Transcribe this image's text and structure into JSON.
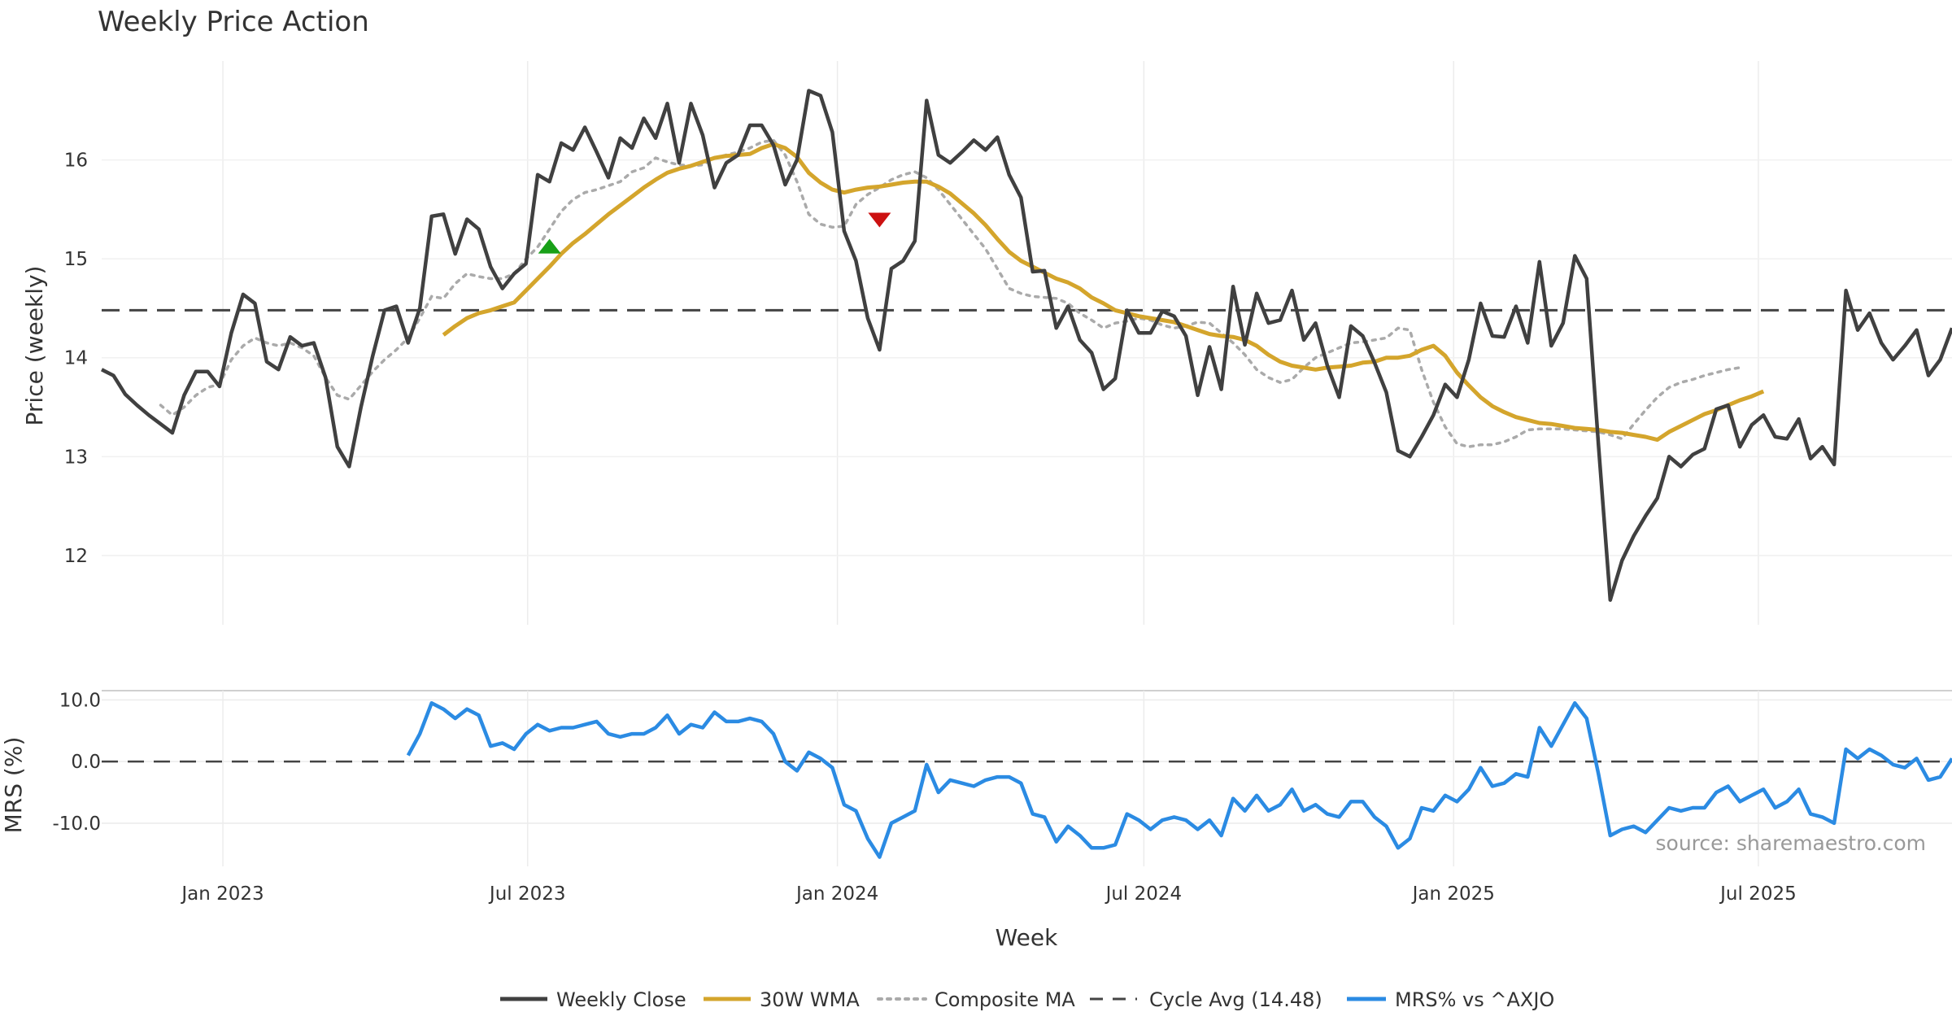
{
  "chart_data": {
    "type": "line",
    "title": "Weekly Price Action",
    "xlabel": "Week",
    "x_ticks": [
      "Jan 2023",
      "Jul 2023",
      "Jan 2024",
      "Jul 2024",
      "Jan 2025",
      "Jul 2025"
    ],
    "x_range": [
      "2022-10-21",
      "2025-10-24"
    ],
    "x_tick_dates": [
      "2023-01-01",
      "2023-07-01",
      "2024-01-01",
      "2024-07-01",
      "2025-01-01",
      "2025-07-01"
    ],
    "grid": true,
    "legend_position": "bottom",
    "source": "source: sharemaestro.com",
    "colors": {
      "close": "#404040",
      "wma": "#d4a52c",
      "composite": "#aaaaaa",
      "avg": "#444444",
      "mrs": "#2b8be3",
      "buy": "#18a018",
      "sell": "#cc1111"
    },
    "price_panel": {
      "ylabel": "Price (weekly)",
      "ylim": [
        11.3,
        17.0
      ],
      "yticks": [
        12,
        13,
        14,
        15,
        16
      ],
      "cycle_avg": 14.48,
      "series": [
        {
          "name": "Weekly Close",
          "start_week": 0,
          "values": [
            13.88,
            13.82,
            13.63,
            13.52,
            13.42,
            13.33,
            13.24,
            13.62,
            13.86,
            13.86,
            13.71,
            14.25,
            14.64,
            14.55,
            13.96,
            13.88,
            14.21,
            14.12,
            14.15,
            13.8,
            13.1,
            12.9,
            13.5,
            14.02,
            14.48,
            14.52,
            14.15,
            14.5,
            15.43,
            15.45,
            15.05,
            15.4,
            15.3,
            14.92,
            14.7,
            14.85,
            14.95,
            15.85,
            15.78,
            16.17,
            16.1,
            16.33,
            16.08,
            15.82,
            16.22,
            16.12,
            16.42,
            16.22,
            16.57,
            15.97,
            16.57,
            16.25,
            15.72,
            15.97,
            16.05,
            16.35,
            16.35,
            16.15,
            15.75,
            16.0,
            16.7,
            16.65,
            16.28,
            15.28,
            14.98,
            14.4,
            14.08,
            14.9,
            14.98,
            15.18,
            16.6,
            16.05,
            15.97,
            16.08,
            16.2,
            16.1,
            16.23,
            15.85,
            15.62,
            14.87,
            14.88,
            14.3,
            14.52,
            14.18,
            14.05,
            13.68,
            13.79,
            14.48,
            14.25,
            14.25,
            14.47,
            14.42,
            14.22,
            13.62,
            14.11,
            13.68,
            14.72,
            14.13,
            14.65,
            14.35,
            14.38,
            14.68,
            14.18,
            14.35,
            13.92,
            13.6,
            14.32,
            14.22,
            13.95,
            13.65,
            13.06,
            13.0,
            13.2,
            13.42,
            13.73,
            13.6,
            13.98,
            14.55,
            14.22,
            14.21,
            14.52,
            14.15,
            14.97,
            14.12,
            14.35,
            15.03,
            14.8,
            13.12,
            11.55,
            11.95,
            12.2,
            12.4,
            12.58,
            13.0,
            12.9,
            13.02,
            13.08,
            13.48,
            13.52,
            13.1,
            13.32,
            13.42,
            13.2,
            13.18,
            13.38,
            12.98,
            13.1,
            12.92,
            14.68,
            14.28,
            14.45,
            14.15,
            13.98,
            14.12,
            14.28,
            13.82,
            13.98,
            14.3
          ]
        },
        {
          "name": "30W WMA",
          "start_week": 29,
          "values": [
            14.23,
            14.32,
            14.4,
            14.45,
            14.48,
            14.52,
            14.56,
            14.68,
            14.8,
            14.92,
            15.05,
            15.16,
            15.25,
            15.35,
            15.45,
            15.54,
            15.63,
            15.72,
            15.8,
            15.87,
            15.91,
            15.94,
            15.98,
            16.02,
            16.04,
            16.05,
            16.06,
            16.12,
            16.16,
            16.12,
            16.03,
            15.87,
            15.77,
            15.7,
            15.67,
            15.7,
            15.72,
            15.73,
            15.75,
            15.77,
            15.78,
            15.78,
            15.73,
            15.66,
            15.56,
            15.46,
            15.34,
            15.2,
            15.07,
            14.98,
            14.92,
            14.86,
            14.8,
            14.76,
            14.7,
            14.61,
            14.55,
            14.48,
            14.45,
            14.42,
            14.4,
            14.38,
            14.36,
            14.32,
            14.28,
            14.24,
            14.22,
            14.21,
            14.18,
            14.12,
            14.03,
            13.96,
            13.92,
            13.9,
            13.88,
            13.9,
            13.91,
            13.92,
            13.95,
            13.96,
            14.0,
            14.0,
            14.02,
            14.08,
            14.12,
            14.02,
            13.85,
            13.72,
            13.6,
            13.51,
            13.45,
            13.4,
            13.37,
            13.34,
            13.33,
            13.31,
            13.29,
            13.28,
            13.27,
            13.25,
            13.24,
            13.22,
            13.2,
            13.17,
            13.25,
            13.31,
            13.37,
            13.43,
            13.47,
            13.52,
            13.57,
            13.61,
            13.66
          ]
        },
        {
          "name": "Composite MA",
          "start_week": 5,
          "values": [
            13.52,
            13.42,
            13.5,
            13.62,
            13.7,
            13.73,
            13.98,
            14.12,
            14.2,
            14.15,
            14.12,
            14.15,
            14.1,
            14.02,
            13.8,
            13.62,
            13.58,
            13.72,
            13.86,
            13.98,
            14.08,
            14.2,
            14.4,
            14.62,
            14.6,
            14.75,
            14.85,
            14.82,
            14.8,
            14.8,
            14.85,
            15.0,
            15.12,
            15.3,
            15.48,
            15.6,
            15.67,
            15.7,
            15.74,
            15.78,
            15.88,
            15.92,
            16.02,
            15.98,
            15.95,
            15.94,
            15.95,
            16.02,
            16.05,
            16.08,
            16.12,
            16.18,
            16.2,
            16.05,
            15.78,
            15.45,
            15.35,
            15.32,
            15.33,
            15.55,
            15.65,
            15.72,
            15.8,
            15.85,
            15.88,
            15.82,
            15.7,
            15.55,
            15.4,
            15.25,
            15.1,
            14.9,
            14.7,
            14.65,
            14.62,
            14.61,
            14.6,
            14.55,
            14.45,
            14.38,
            14.3,
            14.35,
            14.37,
            14.4,
            14.38,
            14.33,
            14.3,
            14.32,
            14.36,
            14.35,
            14.25,
            14.15,
            14.03,
            13.88,
            13.8,
            13.75,
            13.78,
            13.9,
            14.0,
            14.05,
            14.1,
            14.15,
            14.16,
            14.18,
            14.2,
            14.3,
            14.28,
            13.88,
            13.55,
            13.3,
            13.13,
            13.1,
            13.12,
            13.12,
            13.15,
            13.2,
            13.27,
            13.28,
            13.28,
            13.28,
            13.27,
            13.26,
            13.25,
            13.22,
            13.18,
            13.33,
            13.47,
            13.6,
            13.7,
            13.75,
            13.78,
            13.82,
            13.85,
            13.88,
            13.9
          ]
        }
      ],
      "signals": [
        {
          "type": "buy",
          "week": 38,
          "value": 15.12
        },
        {
          "type": "sell",
          "week": 66,
          "value": 15.4
        }
      ]
    },
    "mrs_panel": {
      "ylabel": "MRS (%)",
      "ylim": [
        -17,
        11.5
      ],
      "yticks": [
        "10.0",
        "0.0",
        "-10.0"
      ],
      "ytick_values": [
        10,
        0,
        -10
      ],
      "zero_line": 0,
      "series": [
        {
          "name": "MRS% vs ^AXJO",
          "start_week": 26,
          "values": [
            1.0,
            4.5,
            9.5,
            8.5,
            7.0,
            8.5,
            7.5,
            2.5,
            3.0,
            2.0,
            4.5,
            6.0,
            5.0,
            5.5,
            5.5,
            6.0,
            6.5,
            4.5,
            4.0,
            4.5,
            4.5,
            5.5,
            7.5,
            4.5,
            6.0,
            5.5,
            8.0,
            6.5,
            6.5,
            7.0,
            6.5,
            4.5,
            0.0,
            -1.5,
            1.5,
            0.5,
            -1.0,
            -7.0,
            -8.0,
            -12.5,
            -15.5,
            -10.0,
            -9.0,
            -8.0,
            -0.5,
            -5.0,
            -3.0,
            -3.5,
            -4.0,
            -3.0,
            -2.5,
            -2.5,
            -3.5,
            -8.5,
            -9.0,
            -13.0,
            -10.5,
            -12.0,
            -14.0,
            -14.0,
            -13.5,
            -8.5,
            -9.5,
            -11.0,
            -9.5,
            -9.0,
            -9.5,
            -11.0,
            -9.5,
            -12.0,
            -6.0,
            -8.0,
            -5.5,
            -8.0,
            -7.0,
            -4.5,
            -8.0,
            -7.0,
            -8.5,
            -9.0,
            -6.5,
            -6.5,
            -9.0,
            -10.5,
            -14.0,
            -12.5,
            -7.5,
            -8.0,
            -5.5,
            -6.5,
            -4.5,
            -1.0,
            -4.0,
            -3.5,
            -2.0,
            -2.5,
            5.5,
            2.5,
            6.0,
            9.5,
            7.0,
            -2.0,
            -12.0,
            -11.0,
            -10.5,
            -11.5,
            -9.5,
            -7.5,
            -8.0,
            -7.5,
            -7.5,
            -5.0,
            -4.0,
            -6.5,
            -5.5,
            -4.5,
            -7.5,
            -6.5,
            -4.5,
            -8.5,
            -9.0,
            -10.0,
            2.0,
            0.5,
            2.0,
            1.0,
            -0.5,
            -1.0,
            0.5,
            -3.0,
            -2.5,
            0.5
          ]
        }
      ]
    },
    "legend": [
      "Weekly Close",
      "30W WMA",
      "Composite MA",
      "Cycle Avg (14.48)",
      "MRS% vs ^AXJO"
    ]
  }
}
